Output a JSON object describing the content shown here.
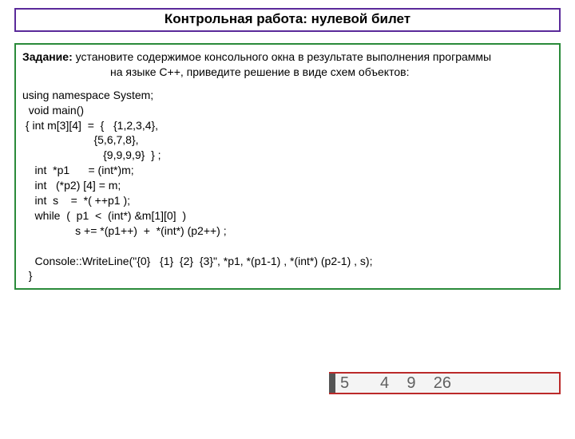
{
  "title": {
    "text": "Контрольная  работа:  нулевой билет",
    "border_color": "#5a2a9a",
    "fontsize": 17,
    "fontweight": "bold"
  },
  "task": {
    "label": "Задание:",
    "line1": "  установите содержимое консольного окна в результате выполнения программы",
    "line2": "на языке С++, приведите решение в виде схем  объектов:",
    "border_color": "#2a8a3a"
  },
  "code": {
    "lines": [
      "using namespace System;",
      "  void main()",
      " { int m[3][4]  =  {   {1,2,3,4},",
      "                       {5,6,7,8},",
      "                          {9,9,9,9}  } ;",
      "    int  *p1      = (int*)m;",
      "    int   (*p2) [4] = m;",
      "    int  s    =  *( ++p1 );",
      "    while  (  p1  <  (int*) &m[1][0]  )",
      "                 s += *(p1++)  +  *(int*) (p2++) ;",
      "",
      "    Console::WriteLine(\"{0}   {1}  {2}  {3}\", *p1, *(p1-1) , *(int*) (p2-1) , s);",
      "  }"
    ],
    "fontsize": 14
  },
  "answer": {
    "text": "5       4    9    26",
    "border_color": "#bb2a2a",
    "text_color": "#606060",
    "background": "#f4f4f4",
    "fontsize": 20
  }
}
